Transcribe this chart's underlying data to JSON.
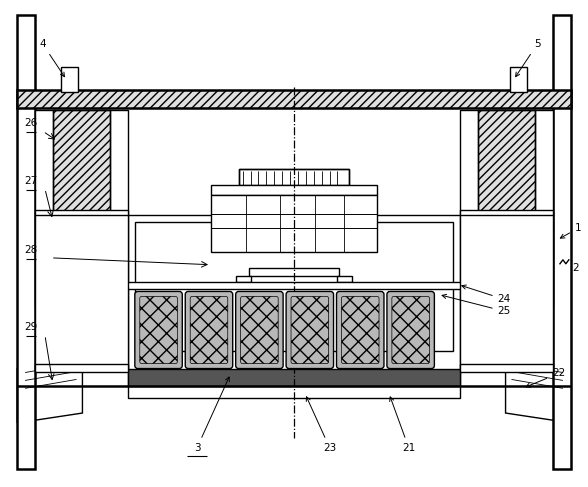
{
  "bg_color": "#ffffff",
  "line_color": "#000000",
  "figsize": [
    5.88,
    4.87
  ],
  "dpi": 100
}
